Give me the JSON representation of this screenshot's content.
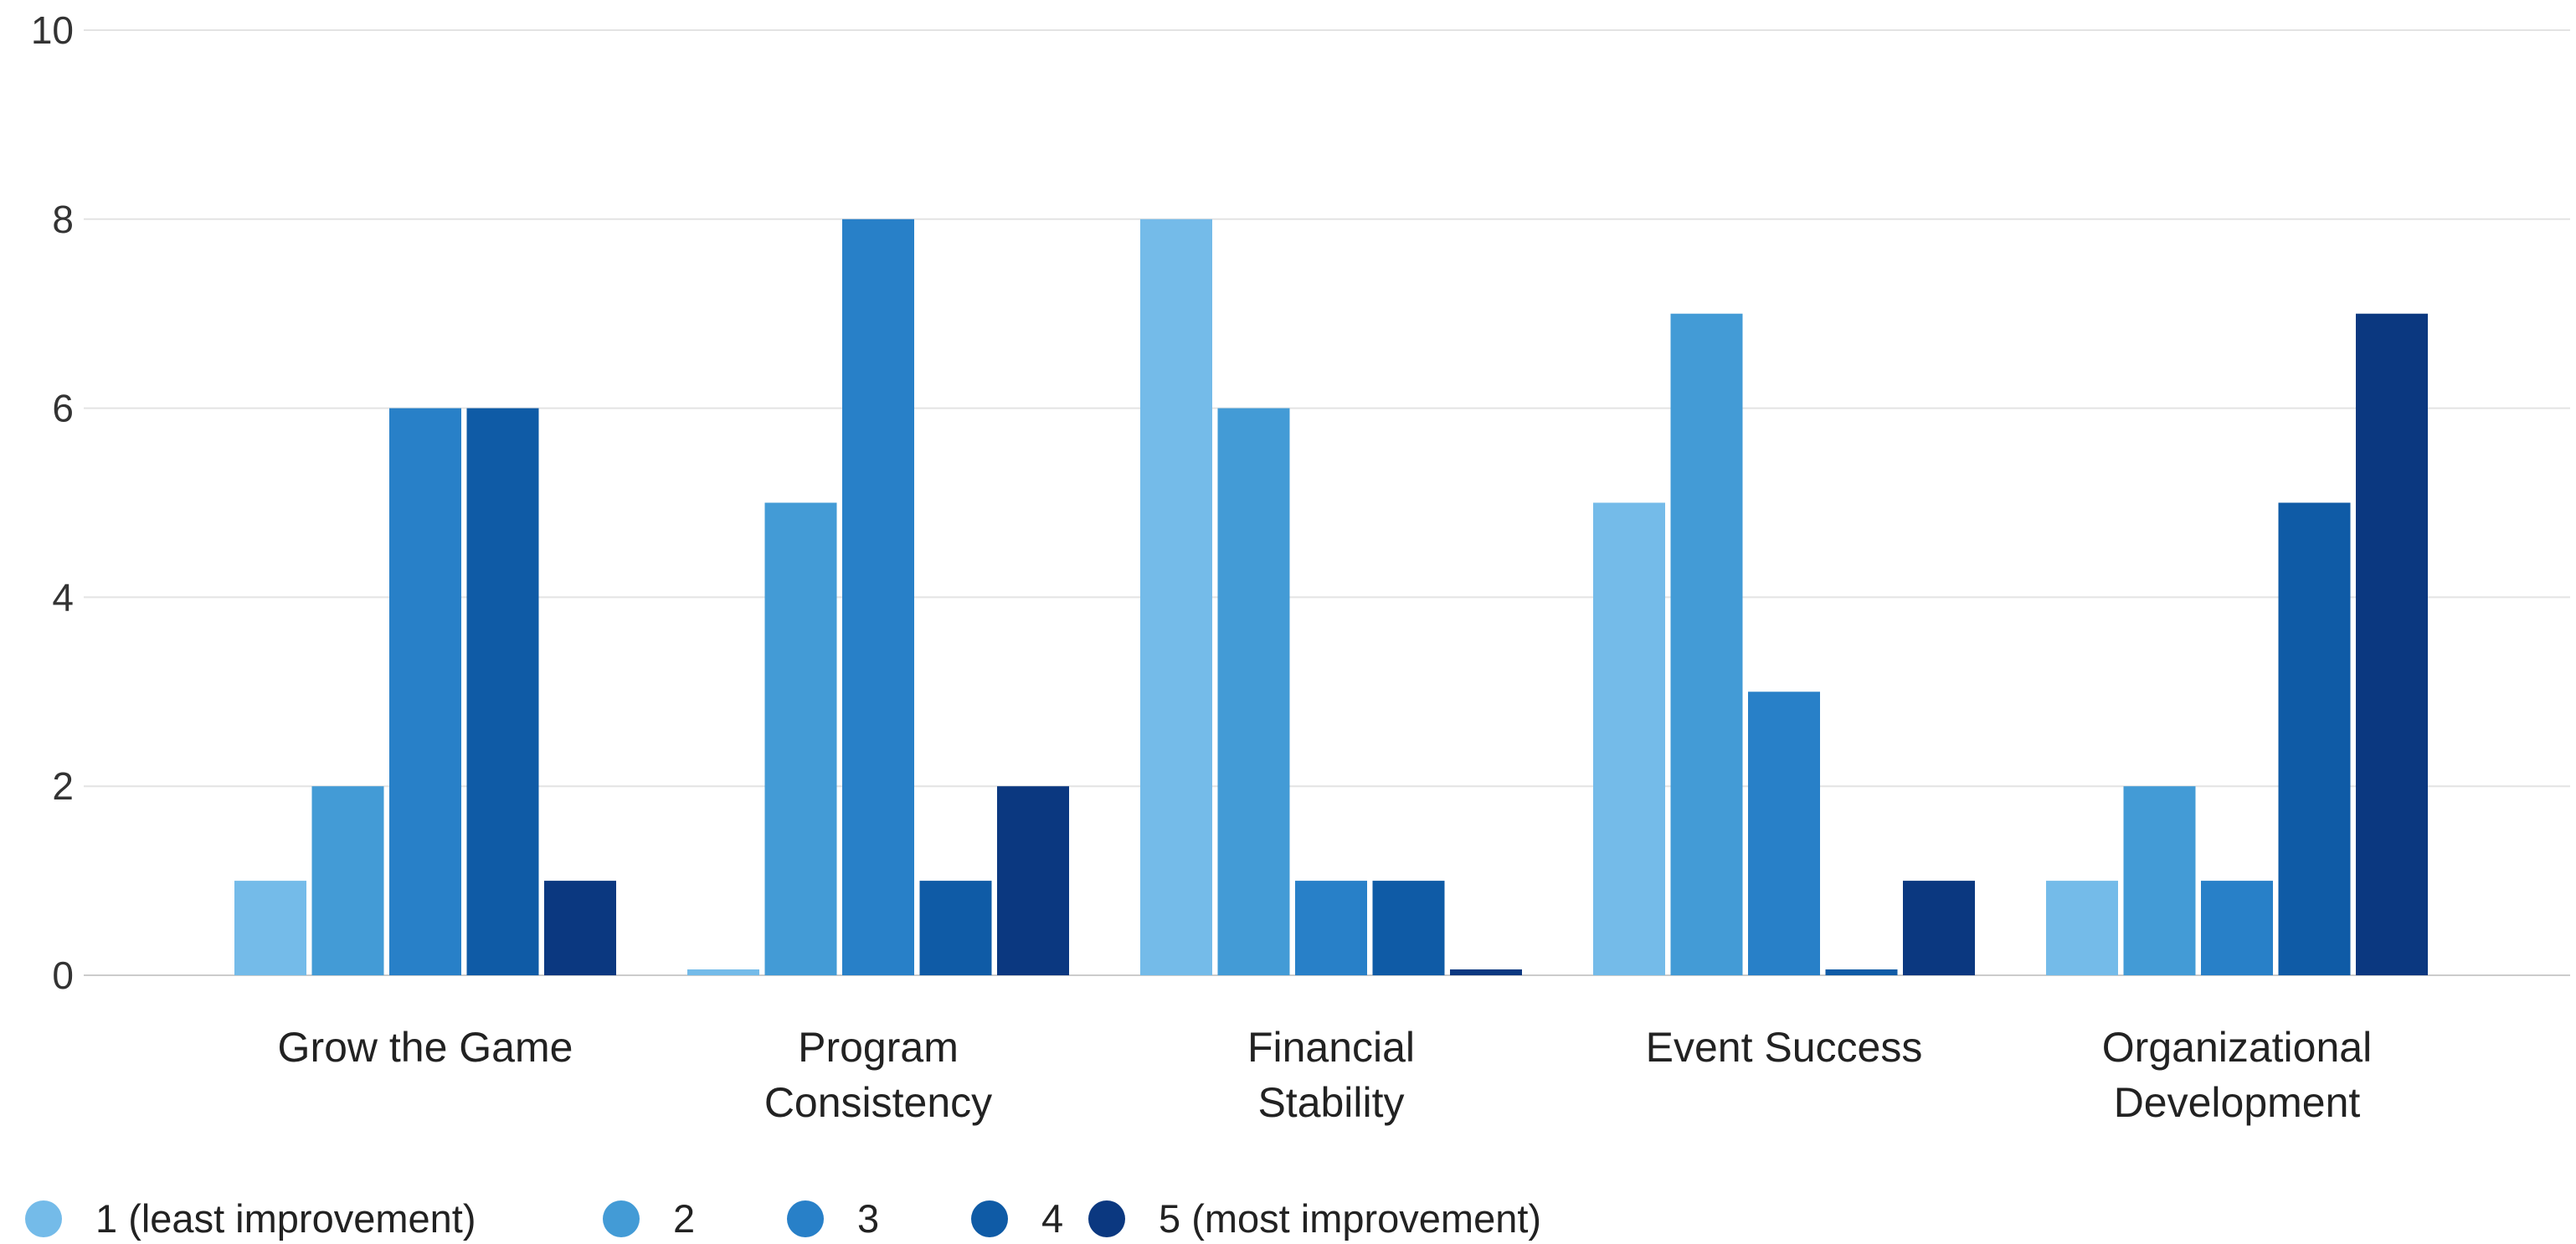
{
  "chart_data": {
    "type": "bar",
    "categories": [
      [
        "Grow the Game"
      ],
      [
        "Program",
        "Consistency"
      ],
      [
        "Financial",
        "Stability"
      ],
      [
        "Event Success"
      ],
      [
        "Organizational",
        "Development"
      ]
    ],
    "series": [
      {
        "name": "1 (least improvement)",
        "color": "#74bbe9",
        "values": [
          1,
          0,
          8,
          5,
          1
        ]
      },
      {
        "name": "2",
        "color": "#439bd6",
        "values": [
          2,
          5,
          6,
          7,
          2
        ]
      },
      {
        "name": "3",
        "color": "#2880c8",
        "values": [
          6,
          8,
          1,
          3,
          1
        ]
      },
      {
        "name": "4",
        "color": "#0f5ba6",
        "values": [
          6,
          1,
          1,
          0,
          5
        ]
      },
      {
        "name": "5 (most improvement)",
        "color": "#0b3880",
        "values": [
          1,
          2,
          0,
          1,
          7
        ]
      }
    ],
    "ylim": [
      0,
      10
    ],
    "yticks": [
      "0",
      "2",
      "4",
      "6",
      "8",
      "10"
    ],
    "grid": true,
    "legend_position": "bottom-left"
  }
}
